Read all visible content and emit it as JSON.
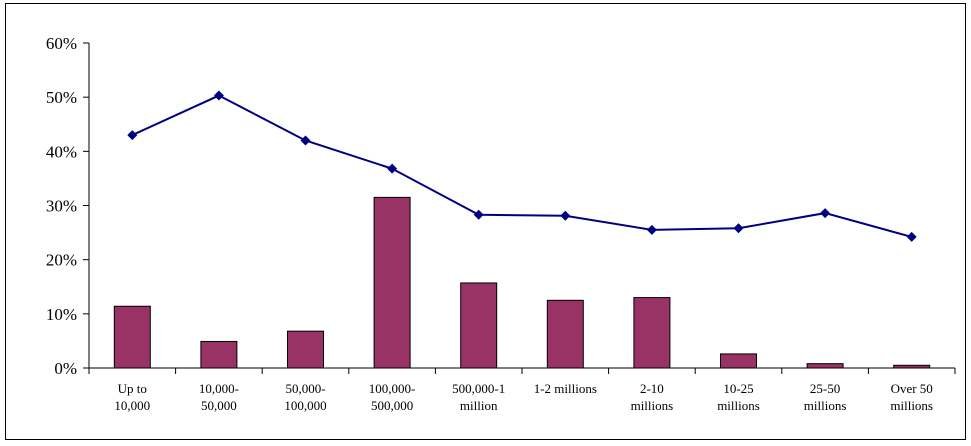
{
  "chart_data": {
    "type": "bar",
    "categories": [
      [
        "Up to",
        "10,000"
      ],
      [
        "10,000-",
        "50,000"
      ],
      [
        "50,000-",
        "100,000"
      ],
      [
        "100,000-",
        "500,000"
      ],
      [
        "500,000-1",
        "million"
      ],
      [
        "1-2 millions"
      ],
      [
        "2-10",
        "millions"
      ],
      [
        "10-25",
        "millions"
      ],
      [
        "25-50",
        "millions"
      ],
      [
        "Over 50",
        "millions"
      ]
    ],
    "series": [
      {
        "type": "bar",
        "values": [
          11.4,
          4.9,
          6.8,
          31.5,
          15.7,
          12.5,
          13.0,
          2.6,
          0.8,
          0.5
        ],
        "color": "#993366"
      },
      {
        "type": "line",
        "values": [
          43.0,
          50.3,
          42.0,
          36.8,
          28.3,
          28.1,
          25.5,
          25.8,
          28.6,
          24.2
        ],
        "color": "#000080",
        "marker": "diamond"
      }
    ],
    "yticks": [
      "0%",
      "10%",
      "20%",
      "30%",
      "40%",
      "50%",
      "60%"
    ],
    "ylim": [
      0,
      60
    ],
    "grid": false,
    "legend": "none"
  }
}
